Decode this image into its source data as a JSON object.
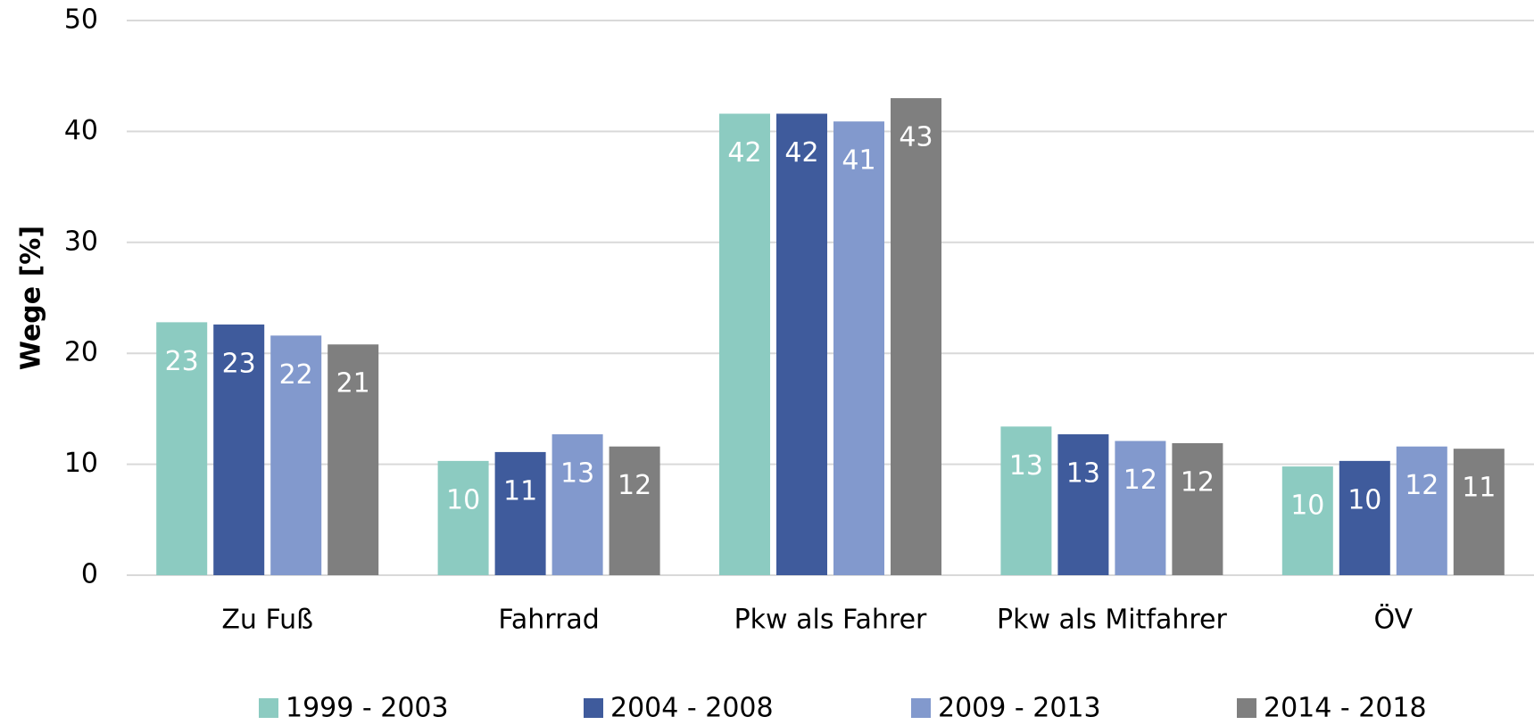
{
  "chart_data": {
    "type": "bar",
    "y_label": "Wege [%]",
    "categories": [
      "Zu Fuß",
      "Fahrrad",
      "Pkw als Fahrer",
      "Pkw als Mitfahrer",
      "ÖV"
    ],
    "series": [
      {
        "name": "1999 - 2003",
        "color": "#8ccbc1",
        "values": [
          22.8,
          10.3,
          41.6,
          13.4,
          9.8
        ],
        "value_labels": [
          "23",
          "10",
          "42",
          "13",
          "10"
        ]
      },
      {
        "name": "2004 - 2008",
        "color": "#3f5b9c",
        "values": [
          22.6,
          11.1,
          41.6,
          12.7,
          10.3
        ],
        "value_labels": [
          "23",
          "11",
          "42",
          "13",
          "10"
        ]
      },
      {
        "name": "2009 - 2013",
        "color": "#8299cd",
        "values": [
          21.6,
          12.7,
          40.9,
          12.1,
          11.6
        ],
        "value_labels": [
          "22",
          "13",
          "41",
          "12",
          "12"
        ]
      },
      {
        "name": "2014 - 2018",
        "color": "#7f7f7f",
        "values": [
          20.8,
          11.6,
          43.0,
          11.9,
          11.4
        ],
        "value_labels": [
          "21",
          "12",
          "43",
          "12",
          "11"
        ]
      }
    ],
    "ylim": [
      0,
      50
    ],
    "yticks": [
      0,
      10,
      20,
      30,
      40,
      50
    ],
    "grid": true,
    "legend": "bottom"
  }
}
